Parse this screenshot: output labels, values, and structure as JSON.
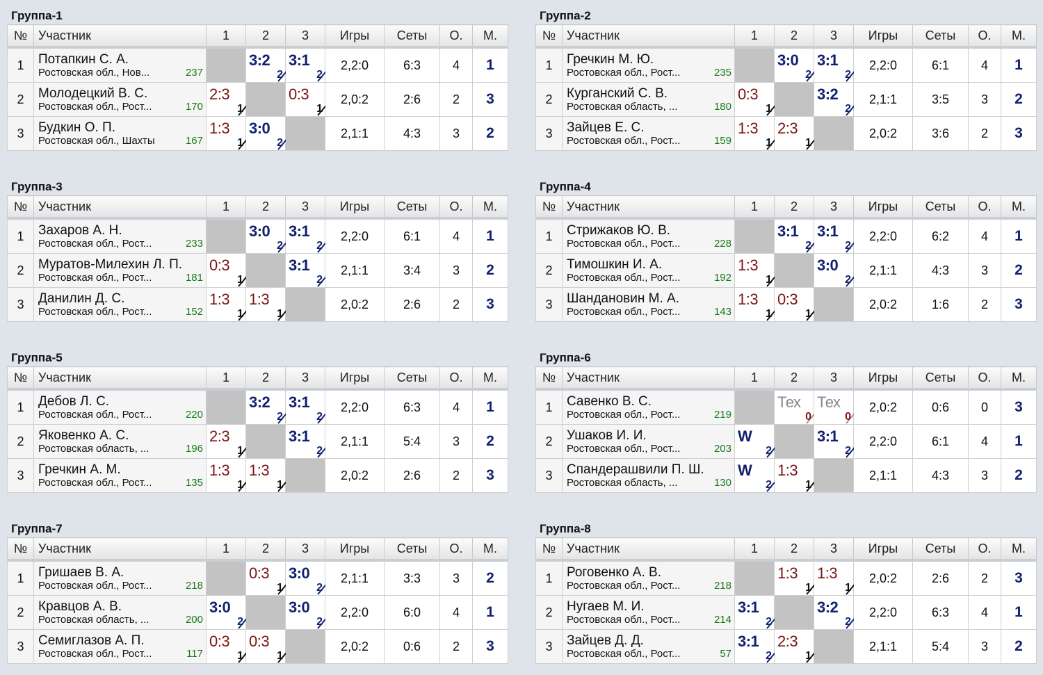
{
  "columns": {
    "num": "№",
    "name": "Участник",
    "c1": "1",
    "c2": "2",
    "c3": "3",
    "games": "Игры",
    "sets": "Сеты",
    "points": "О.",
    "place": "М."
  },
  "groups": [
    {
      "title": "Группа-1",
      "rows": [
        {
          "num": "1",
          "name": "Потапкин С. А.",
          "region": "Ростовская обл., Нов...",
          "rating": "237",
          "results": [
            null,
            {
              "score": "3:2",
              "pts": "2",
              "type": "win"
            },
            {
              "score": "3:1",
              "pts": "2",
              "type": "win"
            }
          ],
          "games": "2,2:0",
          "sets": "6:3",
          "points": "4",
          "place": "1"
        },
        {
          "num": "2",
          "name": "Молодецкий В. С.",
          "region": "Ростовская обл., Рост...",
          "rating": "170",
          "results": [
            {
              "score": "2:3",
              "pts": "1",
              "type": "loss"
            },
            null,
            {
              "score": "0:3",
              "pts": "1",
              "type": "loss"
            }
          ],
          "games": "2,0:2",
          "sets": "2:6",
          "points": "2",
          "place": "3"
        },
        {
          "num": "3",
          "name": "Будкин О. П.",
          "region": "Ростовская обл., Шахты",
          "rating": "167",
          "results": [
            {
              "score": "1:3",
              "pts": "1",
              "type": "loss"
            },
            {
              "score": "3:0",
              "pts": "2",
              "type": "win"
            },
            null
          ],
          "games": "2,1:1",
          "sets": "4:3",
          "points": "3",
          "place": "2"
        }
      ]
    },
    {
      "title": "Группа-2",
      "rows": [
        {
          "num": "1",
          "name": "Гречкин М. Ю.",
          "region": "Ростовская обл., Рост...",
          "rating": "235",
          "results": [
            null,
            {
              "score": "3:0",
              "pts": "2",
              "type": "win"
            },
            {
              "score": "3:1",
              "pts": "2",
              "type": "win"
            }
          ],
          "games": "2,2:0",
          "sets": "6:1",
          "points": "4",
          "place": "1"
        },
        {
          "num": "2",
          "name": "Курганский С. В.",
          "region": "Ростовская область, ...",
          "rating": "180",
          "results": [
            {
              "score": "0:3",
              "pts": "1",
              "type": "loss"
            },
            null,
            {
              "score": "3:2",
              "pts": "2",
              "type": "win"
            }
          ],
          "games": "2,1:1",
          "sets": "3:5",
          "points": "3",
          "place": "2"
        },
        {
          "num": "3",
          "name": "Зайцев Е. С.",
          "region": "Ростовская обл., Рост...",
          "rating": "159",
          "results": [
            {
              "score": "1:3",
              "pts": "1",
              "type": "loss"
            },
            {
              "score": "2:3",
              "pts": "1",
              "type": "loss"
            },
            null
          ],
          "games": "2,0:2",
          "sets": "3:6",
          "points": "2",
          "place": "3"
        }
      ]
    },
    {
      "title": "Группа-3",
      "rows": [
        {
          "num": "1",
          "name": "Захаров А. Н.",
          "region": "Ростовская обл., Рост...",
          "rating": "233",
          "results": [
            null,
            {
              "score": "3:0",
              "pts": "2",
              "type": "win"
            },
            {
              "score": "3:1",
              "pts": "2",
              "type": "win"
            }
          ],
          "games": "2,2:0",
          "sets": "6:1",
          "points": "4",
          "place": "1"
        },
        {
          "num": "2",
          "name": "Муратов-Милехин Л. П.",
          "region": "Ростовская обл., Рост...",
          "rating": "181",
          "results": [
            {
              "score": "0:3",
              "pts": "1",
              "type": "loss"
            },
            null,
            {
              "score": "3:1",
              "pts": "2",
              "type": "win"
            }
          ],
          "games": "2,1:1",
          "sets": "3:4",
          "points": "3",
          "place": "2"
        },
        {
          "num": "3",
          "name": "Данилин Д. С.",
          "region": "Ростовская обл., Рост...",
          "rating": "152",
          "results": [
            {
              "score": "1:3",
              "pts": "1",
              "type": "loss"
            },
            {
              "score": "1:3",
              "pts": "1",
              "type": "loss"
            },
            null
          ],
          "games": "2,0:2",
          "sets": "2:6",
          "points": "2",
          "place": "3"
        }
      ]
    },
    {
      "title": "Группа-4",
      "rows": [
        {
          "num": "1",
          "name": "Стрижаков Ю. В.",
          "region": "Ростовская обл., Рост...",
          "rating": "228",
          "results": [
            null,
            {
              "score": "3:1",
              "pts": "2",
              "type": "win"
            },
            {
              "score": "3:1",
              "pts": "2",
              "type": "win"
            }
          ],
          "games": "2,2:0",
          "sets": "6:2",
          "points": "4",
          "place": "1"
        },
        {
          "num": "2",
          "name": "Тимошкин И. А.",
          "region": "Ростовская обл., Рост...",
          "rating": "192",
          "results": [
            {
              "score": "1:3",
              "pts": "1",
              "type": "loss"
            },
            null,
            {
              "score": "3:0",
              "pts": "2",
              "type": "win"
            }
          ],
          "games": "2,1:1",
          "sets": "4:3",
          "points": "3",
          "place": "2"
        },
        {
          "num": "3",
          "name": "Шандановин М. А.",
          "region": "Ростовская обл., Рост...",
          "rating": "143",
          "results": [
            {
              "score": "1:3",
              "pts": "1",
              "type": "loss"
            },
            {
              "score": "0:3",
              "pts": "1",
              "type": "loss"
            },
            null
          ],
          "games": "2,0:2",
          "sets": "1:6",
          "points": "2",
          "place": "3"
        }
      ]
    },
    {
      "title": "Группа-5",
      "rows": [
        {
          "num": "1",
          "name": "Дебов Л. С.",
          "region": "Ростовская обл., Рост...",
          "rating": "220",
          "results": [
            null,
            {
              "score": "3:2",
              "pts": "2",
              "type": "win"
            },
            {
              "score": "3:1",
              "pts": "2",
              "type": "win"
            }
          ],
          "games": "2,2:0",
          "sets": "6:3",
          "points": "4",
          "place": "1"
        },
        {
          "num": "2",
          "name": "Яковенко А. С.",
          "region": "Ростовская область, ...",
          "rating": "196",
          "results": [
            {
              "score": "2:3",
              "pts": "1",
              "type": "loss"
            },
            null,
            {
              "score": "3:1",
              "pts": "2",
              "type": "win"
            }
          ],
          "games": "2,1:1",
          "sets": "5:4",
          "points": "3",
          "place": "2"
        },
        {
          "num": "3",
          "name": "Гречкин А. М.",
          "region": "Ростовская обл., Рост...",
          "rating": "135",
          "results": [
            {
              "score": "1:3",
              "pts": "1",
              "type": "loss"
            },
            {
              "score": "1:3",
              "pts": "1",
              "type": "loss"
            },
            null
          ],
          "games": "2,0:2",
          "sets": "2:6",
          "points": "2",
          "place": "3"
        }
      ]
    },
    {
      "title": "Группа-6",
      "rows": [
        {
          "num": "1",
          "name": "Савенко В. С.",
          "region": "Ростовская обл., Рост...",
          "rating": "219",
          "results": [
            null,
            {
              "score": "Тех",
              "pts": "0",
              "type": "tech"
            },
            {
              "score": "Тех",
              "pts": "0",
              "type": "tech"
            }
          ],
          "games": "2,0:2",
          "sets": "0:6",
          "points": "0",
          "place": "3"
        },
        {
          "num": "2",
          "name": "Ушаков И. И.",
          "region": "Ростовская обл., Рост...",
          "rating": "203",
          "results": [
            {
              "score": "W",
              "pts": "2",
              "type": "win"
            },
            null,
            {
              "score": "3:1",
              "pts": "2",
              "type": "win"
            }
          ],
          "games": "2,2:0",
          "sets": "6:1",
          "points": "4",
          "place": "1"
        },
        {
          "num": "3",
          "name": "Спандерашвили П. Ш.",
          "region": "Ростовская область, ...",
          "rating": "130",
          "results": [
            {
              "score": "W",
              "pts": "2",
              "type": "win"
            },
            {
              "score": "1:3",
              "pts": "1",
              "type": "loss"
            },
            null
          ],
          "games": "2,1:1",
          "sets": "4:3",
          "points": "3",
          "place": "2"
        }
      ]
    },
    {
      "title": "Группа-7",
      "rows": [
        {
          "num": "1",
          "name": "Гришаев В. А.",
          "region": "Ростовская обл., Рост...",
          "rating": "218",
          "results": [
            null,
            {
              "score": "0:3",
              "pts": "1",
              "type": "loss"
            },
            {
              "score": "3:0",
              "pts": "2",
              "type": "win"
            }
          ],
          "games": "2,1:1",
          "sets": "3:3",
          "points": "3",
          "place": "2"
        },
        {
          "num": "2",
          "name": "Кравцов А. В.",
          "region": "Ростовская область, ...",
          "rating": "200",
          "results": [
            {
              "score": "3:0",
              "pts": "2",
              "type": "win"
            },
            null,
            {
              "score": "3:0",
              "pts": "2",
              "type": "win"
            }
          ],
          "games": "2,2:0",
          "sets": "6:0",
          "points": "4",
          "place": "1"
        },
        {
          "num": "3",
          "name": "Семиглазов А. П.",
          "region": "Ростовская обл., Рост...",
          "rating": "117",
          "results": [
            {
              "score": "0:3",
              "pts": "1",
              "type": "loss"
            },
            {
              "score": "0:3",
              "pts": "1",
              "type": "loss"
            },
            null
          ],
          "games": "2,0:2",
          "sets": "0:6",
          "points": "2",
          "place": "3"
        }
      ]
    },
    {
      "title": "Группа-8",
      "rows": [
        {
          "num": "1",
          "name": "Роговенко А. В.",
          "region": "Ростовская обл., Рост...",
          "rating": "218",
          "results": [
            null,
            {
              "score": "1:3",
              "pts": "1",
              "type": "loss"
            },
            {
              "score": "1:3",
              "pts": "1",
              "type": "loss"
            }
          ],
          "games": "2,0:2",
          "sets": "2:6",
          "points": "2",
          "place": "3"
        },
        {
          "num": "2",
          "name": "Нугаев М. И.",
          "region": "Ростовская обл., Рост...",
          "rating": "214",
          "results": [
            {
              "score": "3:1",
              "pts": "2",
              "type": "win"
            },
            null,
            {
              "score": "3:2",
              "pts": "2",
              "type": "win"
            }
          ],
          "games": "2,2:0",
          "sets": "6:3",
          "points": "4",
          "place": "1"
        },
        {
          "num": "3",
          "name": "Зайцев Д. Д.",
          "region": "Ростовская обл., Рост...",
          "rating": "57",
          "results": [
            {
              "score": "3:1",
              "pts": "2",
              "type": "win"
            },
            {
              "score": "2:3",
              "pts": "1",
              "type": "loss"
            },
            null
          ],
          "games": "2,1:1",
          "sets": "5:4",
          "points": "3",
          "place": "2"
        }
      ]
    }
  ]
}
